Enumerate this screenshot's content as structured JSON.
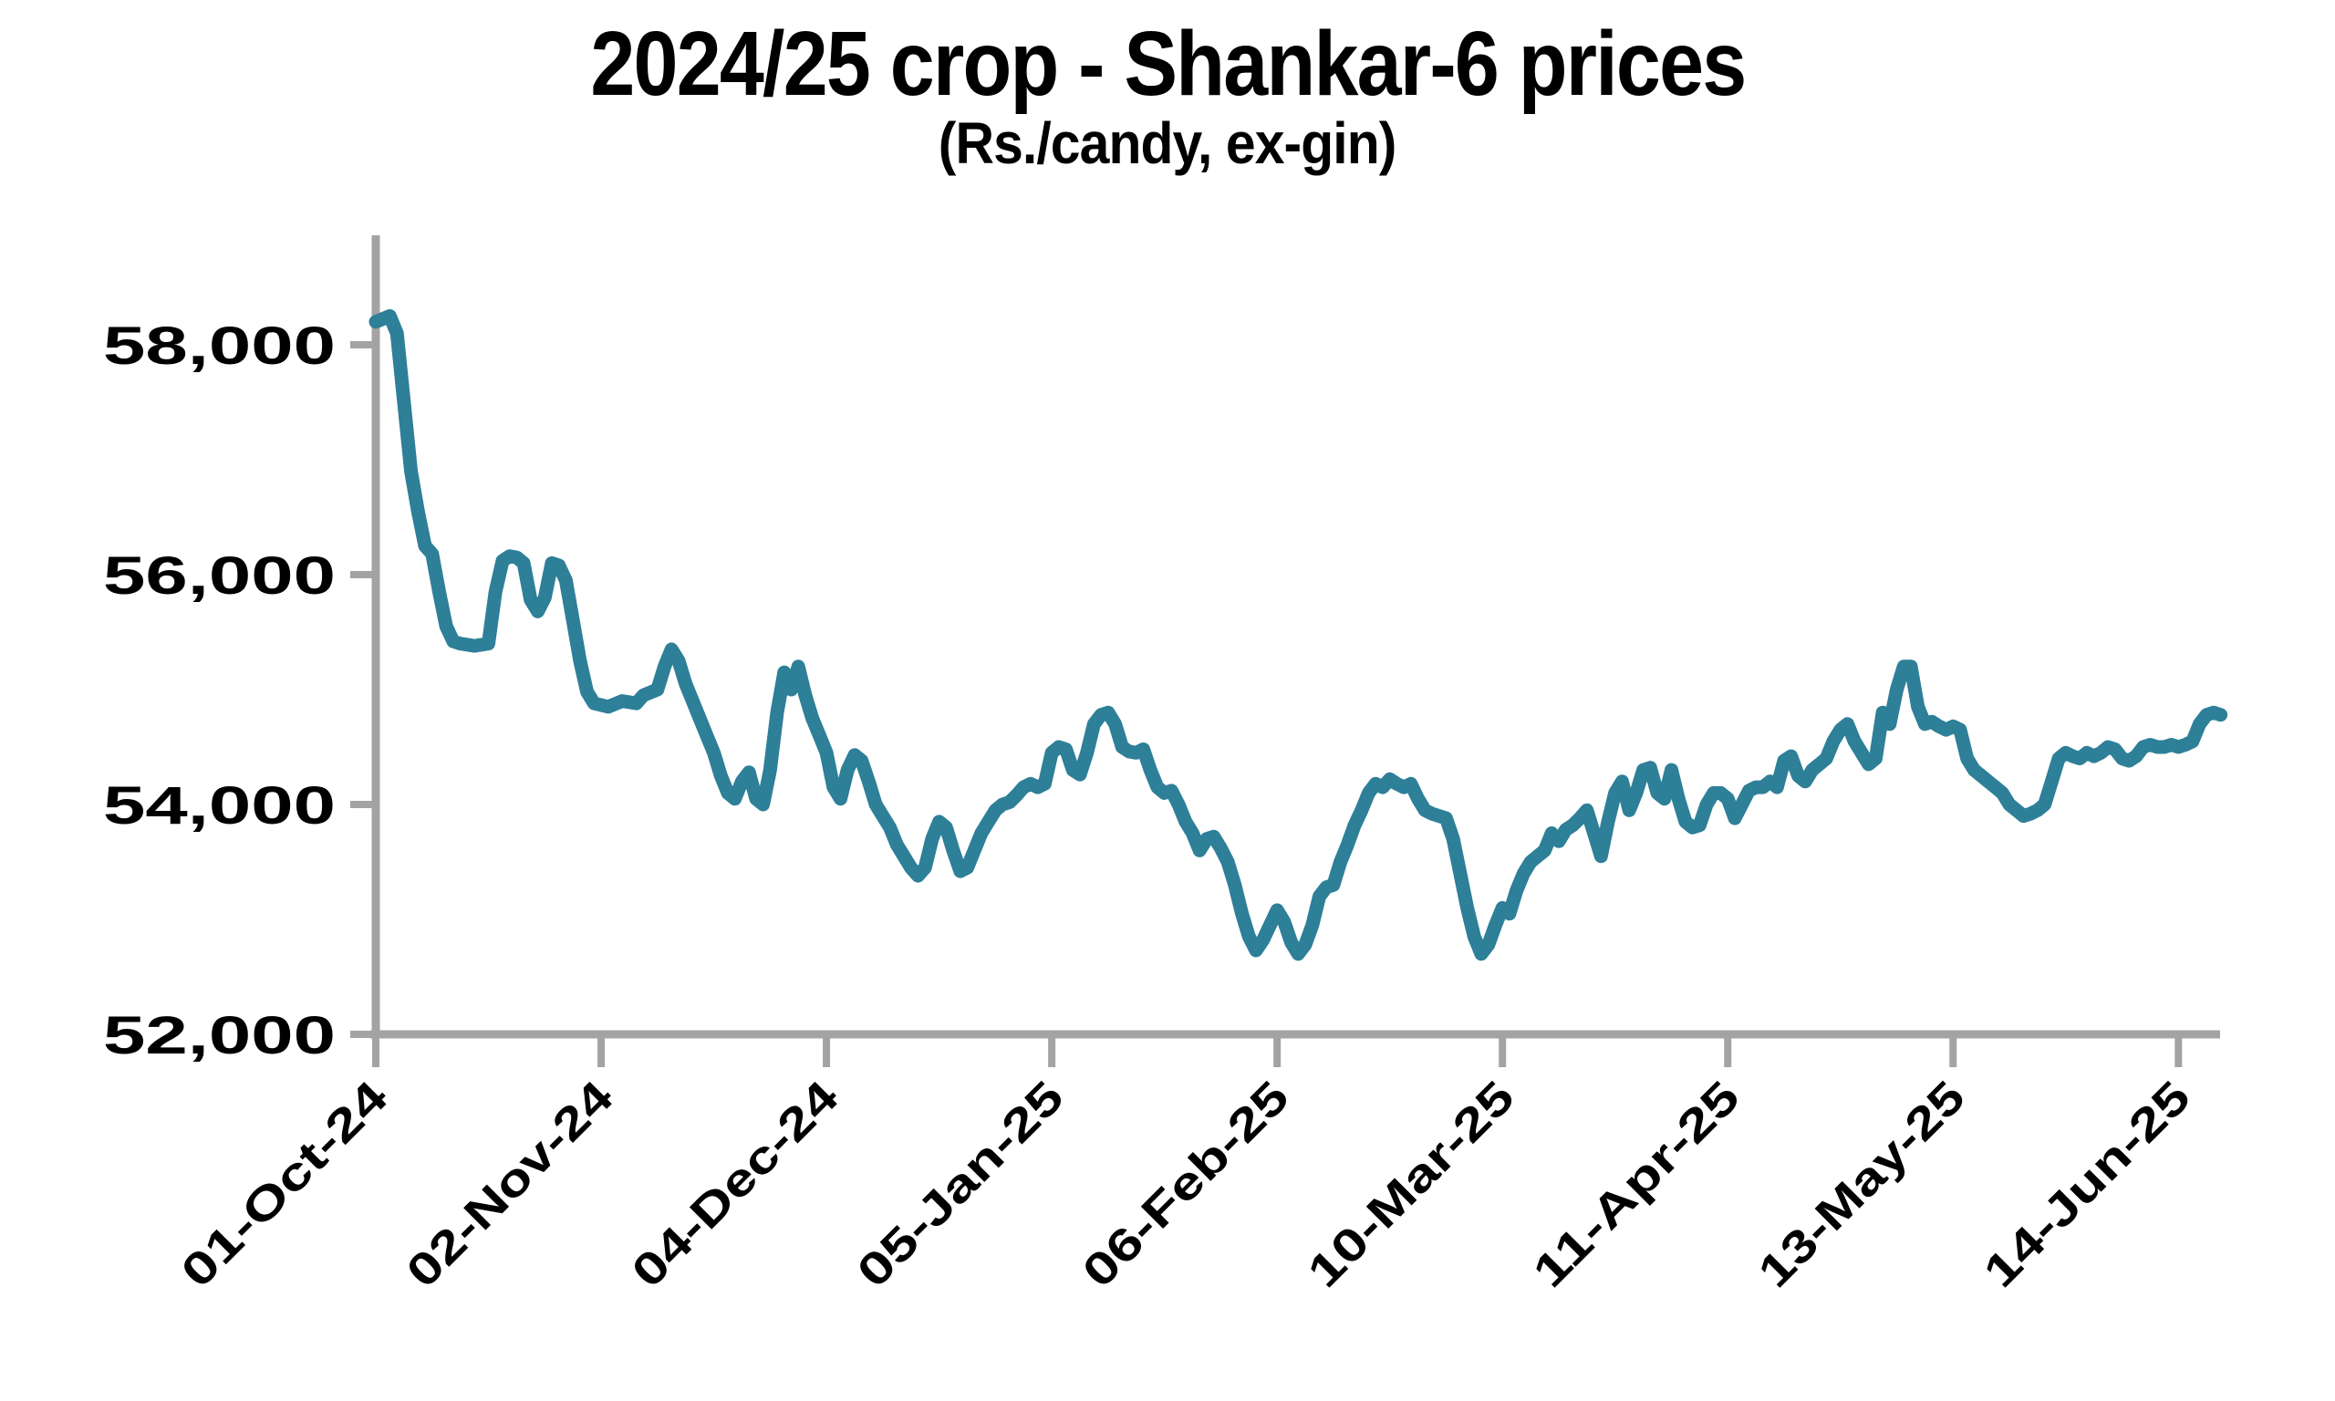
{
  "title": "2024/25 crop - Shankar-6 prices",
  "subtitle": "(Rs./candy, ex-gin)",
  "chart_data": {
    "type": "line",
    "title": "2024/25 crop - Shankar-6 prices",
    "subtitle": "(Rs./candy, ex-gin)",
    "series_name": "Shankar-6 price (Rs./candy, ex-gin)",
    "line_color": "#2e7f98",
    "axis_color": "#a3a3a3",
    "grid": "off",
    "legend": "none",
    "ylim": [
      52000,
      58900
    ],
    "x_start_date": "2024-10-01",
    "x_unit": "days since 01-Oct-24",
    "y_ticks": [
      {
        "label": "58,000",
        "value": 58000
      },
      {
        "label": "56,000",
        "value": 56000
      },
      {
        "label": "54,000",
        "value": 54000
      },
      {
        "label": "52,000",
        "value": 52000
      }
    ],
    "x_ticks": [
      {
        "label": "01-Oct-24",
        "day": 0
      },
      {
        "label": "02-Nov-24",
        "day": 32
      },
      {
        "label": "04-Dec-24",
        "day": 64
      },
      {
        "label": "05-Jan-25",
        "day": 96
      },
      {
        "label": "06-Feb-25",
        "day": 128
      },
      {
        "label": "10-Mar-25",
        "day": 160
      },
      {
        "label": "11-Apr-25",
        "day": 192
      },
      {
        "label": "13-May-25",
        "day": 224
      },
      {
        "label": "14-Jun-25",
        "day": 256
      }
    ],
    "points": [
      [
        0,
        58200
      ],
      [
        2,
        58250
      ],
      [
        3,
        58100
      ],
      [
        5,
        56900
      ],
      [
        6,
        56550
      ],
      [
        7,
        56250
      ],
      [
        8,
        56180
      ],
      [
        9,
        55850
      ],
      [
        10,
        55550
      ],
      [
        11,
        55420
      ],
      [
        12,
        55400
      ],
      [
        14,
        55380
      ],
      [
        16,
        55400
      ],
      [
        17,
        55850
      ],
      [
        18,
        56120
      ],
      [
        19,
        56160
      ],
      [
        20,
        56150
      ],
      [
        21,
        56100
      ],
      [
        22,
        55780
      ],
      [
        23,
        55680
      ],
      [
        24,
        55800
      ],
      [
        25,
        56100
      ],
      [
        26,
        56080
      ],
      [
        27,
        55950
      ],
      [
        28,
        55600
      ],
      [
        29,
        55250
      ],
      [
        30,
        54980
      ],
      [
        31,
        54880
      ],
      [
        33,
        54850
      ],
      [
        35,
        54900
      ],
      [
        37,
        54880
      ],
      [
        38,
        54950
      ],
      [
        40,
        55000
      ],
      [
        41,
        55200
      ],
      [
        42,
        55350
      ],
      [
        43,
        55250
      ],
      [
        44,
        55050
      ],
      [
        45,
        54900
      ],
      [
        46,
        54750
      ],
      [
        47,
        54600
      ],
      [
        48,
        54450
      ],
      [
        49,
        54250
      ],
      [
        50,
        54100
      ],
      [
        51,
        54050
      ],
      [
        52,
        54200
      ],
      [
        53,
        54280
      ],
      [
        54,
        54050
      ],
      [
        55,
        54000
      ],
      [
        56,
        54300
      ],
      [
        57,
        54800
      ],
      [
        58,
        55150
      ],
      [
        59,
        55000
      ],
      [
        60,
        55200
      ],
      [
        61,
        54950
      ],
      [
        62,
        54750
      ],
      [
        63,
        54600
      ],
      [
        64,
        54450
      ],
      [
        65,
        54150
      ],
      [
        66,
        54050
      ],
      [
        67,
        54300
      ],
      [
        68,
        54430
      ],
      [
        69,
        54380
      ],
      [
        70,
        54200
      ],
      [
        71,
        54000
      ],
      [
        72,
        53900
      ],
      [
        73,
        53800
      ],
      [
        74,
        53650
      ],
      [
        75,
        53550
      ],
      [
        76,
        53450
      ],
      [
        77,
        53380
      ],
      [
        78,
        53450
      ],
      [
        79,
        53700
      ],
      [
        80,
        53850
      ],
      [
        81,
        53800
      ],
      [
        82,
        53600
      ],
      [
        83,
        53420
      ],
      [
        84,
        53450
      ],
      [
        85,
        53600
      ],
      [
        86,
        53750
      ],
      [
        87,
        53850
      ],
      [
        88,
        53950
      ],
      [
        89,
        54000
      ],
      [
        90,
        54020
      ],
      [
        91,
        54080
      ],
      [
        92,
        54150
      ],
      [
        93,
        54180
      ],
      [
        94,
        54150
      ],
      [
        95,
        54180
      ],
      [
        96,
        54450
      ],
      [
        97,
        54500
      ],
      [
        98,
        54480
      ],
      [
        99,
        54300
      ],
      [
        100,
        54260
      ],
      [
        101,
        54450
      ],
      [
        102,
        54700
      ],
      [
        103,
        54780
      ],
      [
        104,
        54800
      ],
      [
        105,
        54700
      ],
      [
        106,
        54500
      ],
      [
        107,
        54460
      ],
      [
        108,
        54450
      ],
      [
        109,
        54480
      ],
      [
        110,
        54300
      ],
      [
        111,
        54150
      ],
      [
        112,
        54100
      ],
      [
        113,
        54120
      ],
      [
        114,
        54000
      ],
      [
        115,
        53850
      ],
      [
        116,
        53750
      ],
      [
        117,
        53600
      ],
      [
        118,
        53700
      ],
      [
        119,
        53720
      ],
      [
        120,
        53620
      ],
      [
        121,
        53500
      ],
      [
        122,
        53300
      ],
      [
        123,
        53050
      ],
      [
        124,
        52850
      ],
      [
        125,
        52730
      ],
      [
        126,
        52820
      ],
      [
        127,
        52950
      ],
      [
        128,
        53080
      ],
      [
        129,
        52980
      ],
      [
        130,
        52800
      ],
      [
        131,
        52700
      ],
      [
        132,
        52780
      ],
      [
        133,
        52950
      ],
      [
        134,
        53200
      ],
      [
        135,
        53280
      ],
      [
        136,
        53300
      ],
      [
        137,
        53500
      ],
      [
        138,
        53650
      ],
      [
        139,
        53820
      ],
      [
        140,
        53950
      ],
      [
        141,
        54100
      ],
      [
        142,
        54180
      ],
      [
        143,
        54150
      ],
      [
        144,
        54220
      ],
      [
        145,
        54180
      ],
      [
        146,
        54150
      ],
      [
        147,
        54180
      ],
      [
        148,
        54050
      ],
      [
        149,
        53950
      ],
      [
        150,
        53920
      ],
      [
        151,
        53900
      ],
      [
        152,
        53880
      ],
      [
        153,
        53700
      ],
      [
        154,
        53400
      ],
      [
        155,
        53100
      ],
      [
        156,
        52850
      ],
      [
        157,
        52700
      ],
      [
        158,
        52780
      ],
      [
        159,
        52950
      ],
      [
        160,
        53100
      ],
      [
        161,
        53050
      ],
      [
        162,
        53250
      ],
      [
        163,
        53400
      ],
      [
        164,
        53500
      ],
      [
        165,
        53550
      ],
      [
        166,
        53600
      ],
      [
        167,
        53750
      ],
      [
        168,
        53680
      ],
      [
        169,
        53780
      ],
      [
        170,
        53820
      ],
      [
        171,
        53880
      ],
      [
        172,
        53950
      ],
      [
        173,
        53750
      ],
      [
        174,
        53550
      ],
      [
        175,
        53850
      ],
      [
        176,
        54100
      ],
      [
        177,
        54200
      ],
      [
        178,
        53950
      ],
      [
        179,
        54100
      ],
      [
        180,
        54300
      ],
      [
        181,
        54320
      ],
      [
        182,
        54100
      ],
      [
        183,
        54050
      ],
      [
        184,
        54300
      ],
      [
        185,
        54050
      ],
      [
        186,
        53850
      ],
      [
        187,
        53800
      ],
      [
        188,
        53820
      ],
      [
        189,
        54000
      ],
      [
        190,
        54100
      ],
      [
        191,
        54100
      ],
      [
        192,
        54050
      ],
      [
        193,
        53880
      ],
      [
        194,
        54000
      ],
      [
        195,
        54120
      ],
      [
        196,
        54150
      ],
      [
        197,
        54150
      ],
      [
        198,
        54200
      ],
      [
        199,
        54150
      ],
      [
        200,
        54380
      ],
      [
        201,
        54420
      ],
      [
        202,
        54250
      ],
      [
        203,
        54200
      ],
      [
        204,
        54300
      ],
      [
        205,
        54350
      ],
      [
        206,
        54400
      ],
      [
        207,
        54550
      ],
      [
        208,
        54650
      ],
      [
        209,
        54700
      ],
      [
        210,
        54550
      ],
      [
        211,
        54450
      ],
      [
        212,
        54350
      ],
      [
        213,
        54400
      ],
      [
        214,
        54800
      ],
      [
        215,
        54700
      ],
      [
        216,
        55000
      ],
      [
        217,
        55200
      ],
      [
        218,
        55200
      ],
      [
        219,
        54850
      ],
      [
        220,
        54700
      ],
      [
        221,
        54720
      ],
      [
        222,
        54680
      ],
      [
        223,
        54650
      ],
      [
        224,
        54680
      ],
      [
        225,
        54650
      ],
      [
        226,
        54400
      ],
      [
        227,
        54300
      ],
      [
        228,
        54250
      ],
      [
        229,
        54200
      ],
      [
        230,
        54150
      ],
      [
        231,
        54100
      ],
      [
        232,
        54000
      ],
      [
        233,
        53950
      ],
      [
        234,
        53900
      ],
      [
        235,
        53920
      ],
      [
        236,
        53950
      ],
      [
        237,
        54000
      ],
      [
        238,
        54200
      ],
      [
        239,
        54400
      ],
      [
        240,
        54450
      ],
      [
        241,
        54420
      ],
      [
        242,
        54400
      ],
      [
        243,
        54450
      ],
      [
        244,
        54420
      ],
      [
        245,
        54450
      ],
      [
        246,
        54500
      ],
      [
        247,
        54480
      ],
      [
        248,
        54400
      ],
      [
        249,
        54380
      ],
      [
        250,
        54420
      ],
      [
        251,
        54500
      ],
      [
        252,
        54520
      ],
      [
        253,
        54500
      ],
      [
        254,
        54500
      ],
      [
        255,
        54520
      ],
      [
        256,
        54500
      ],
      [
        257,
        54520
      ],
      [
        258,
        54550
      ],
      [
        259,
        54700
      ],
      [
        260,
        54780
      ],
      [
        261,
        54800
      ],
      [
        262,
        54780
      ]
    ]
  }
}
